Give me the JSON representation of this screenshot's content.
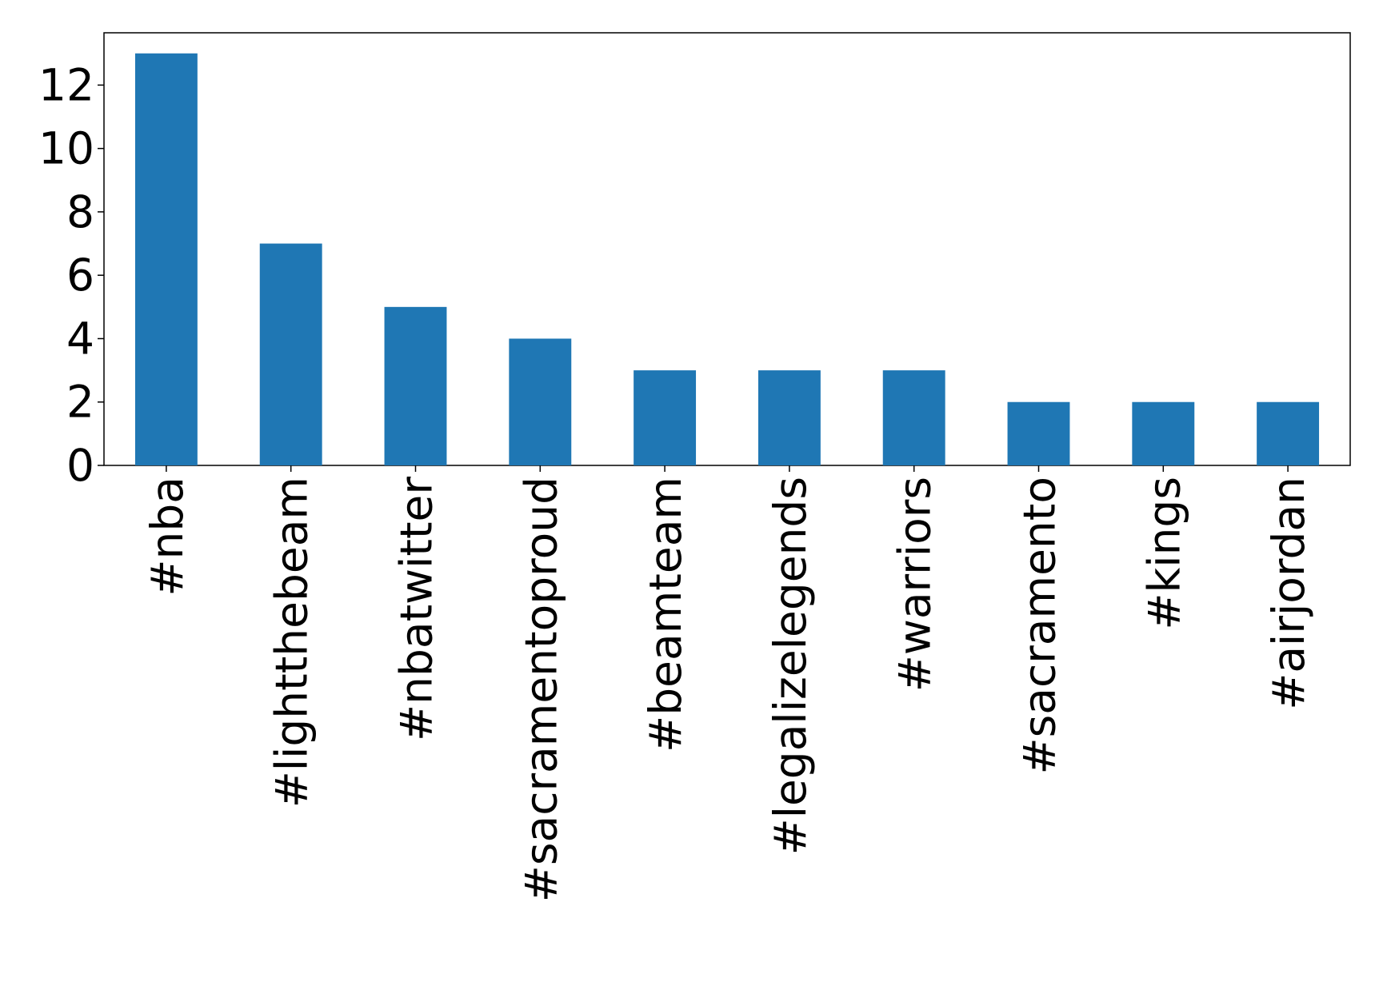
{
  "chart_data": {
    "type": "bar",
    "categories": [
      "#nba",
      "#lightthebeam",
      "#nbatwitter",
      "#sacramentoproud",
      "#beamteam",
      "#legalizelegends",
      "#warriors",
      "#sacramento",
      "#kings",
      "#airjordan"
    ],
    "values": [
      13,
      7,
      5,
      4,
      3,
      3,
      3,
      2,
      2,
      2
    ],
    "color": "#1f77b4",
    "ylim": [
      0,
      13.65
    ],
    "yticks": [
      0,
      2,
      4,
      6,
      8,
      10,
      12
    ],
    "grid": false
  }
}
